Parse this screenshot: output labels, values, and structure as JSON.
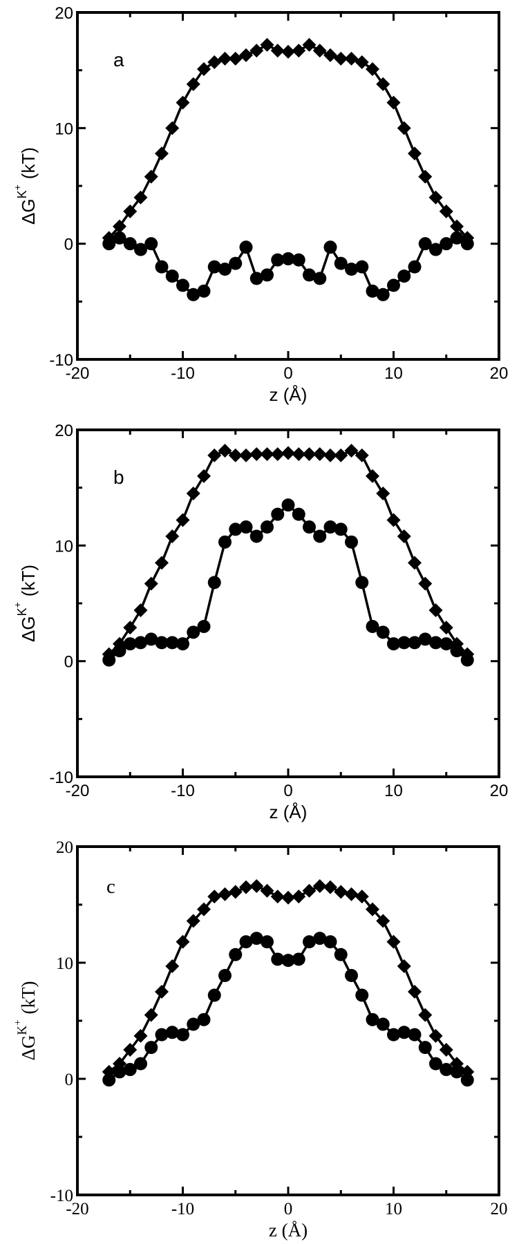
{
  "chart_data": [
    {
      "type": "line",
      "panel_label": "a",
      "xlabel": "z (Å)",
      "ylabel": "ΔG",
      "ylabel_sup": "K",
      "ylabel_supsup": "+",
      "ylabel_unit": "(kT)",
      "xlim": [
        -20,
        20
      ],
      "ylim": [
        -10,
        20
      ],
      "xticks": [
        "-20",
        "-10",
        "0",
        "10",
        "20"
      ],
      "yticks": [
        "-10",
        "0",
        "10",
        "20"
      ],
      "series": [
        {
          "marker": "diamond",
          "x": [
            -17,
            -16,
            -15,
            -14,
            -13,
            -12,
            -11,
            -10,
            -9,
            -8,
            -7,
            -6,
            -5,
            -4,
            -3,
            -2,
            -1,
            0,
            1,
            2,
            3,
            4,
            5,
            6,
            7,
            8,
            9,
            10,
            11,
            12,
            13,
            14,
            15,
            16,
            17
          ],
          "y": [
            0.5,
            1.5,
            2.8,
            4.0,
            5.8,
            7.8,
            10.0,
            12.2,
            13.8,
            15.1,
            15.7,
            16.0,
            16.0,
            16.3,
            16.7,
            17.2,
            16.7,
            16.6,
            16.7,
            17.2,
            16.7,
            16.3,
            16.0,
            16.0,
            15.7,
            15.1,
            13.8,
            12.2,
            10.0,
            7.8,
            5.8,
            4.0,
            2.8,
            1.5,
            0.5
          ]
        },
        {
          "marker": "circle",
          "x": [
            -17,
            -16,
            -15,
            -14,
            -13,
            -12,
            -11,
            -10,
            -9,
            -8,
            -7,
            -6,
            -5,
            -4,
            -3,
            -2,
            -1,
            0,
            1,
            2,
            3,
            4,
            5,
            6,
            7,
            8,
            9,
            10,
            11,
            12,
            13,
            14,
            15,
            16,
            17
          ],
          "y": [
            0.0,
            0.5,
            0.0,
            -0.5,
            0.0,
            -2.0,
            -2.8,
            -3.6,
            -4.4,
            -4.1,
            -2.0,
            -2.2,
            -1.7,
            -0.3,
            -3.0,
            -2.7,
            -1.4,
            -1.3,
            -1.4,
            -2.7,
            -3.0,
            -0.3,
            -1.7,
            -2.2,
            -2.0,
            -4.1,
            -4.4,
            -3.6,
            -2.8,
            -2.0,
            0.0,
            -0.5,
            0.0,
            0.5,
            0.0
          ]
        }
      ]
    },
    {
      "type": "line",
      "panel_label": "b",
      "xlabel": "z (Å)",
      "ylabel": "ΔG",
      "ylabel_sup": "K",
      "ylabel_supsup": "+",
      "ylabel_unit": "(kT)",
      "xlim": [
        -20,
        20
      ],
      "ylim": [
        -10,
        20
      ],
      "xticks": [
        "-20",
        "-10",
        "0",
        "10",
        "20"
      ],
      "yticks": [
        "-10",
        "0",
        "10",
        "20"
      ],
      "series": [
        {
          "marker": "diamond",
          "x": [
            -17,
            -16,
            -15,
            -14,
            -13,
            -12,
            -11,
            -10,
            -9,
            -8,
            -7,
            -6,
            -5,
            -4,
            -3,
            -2,
            -1,
            0,
            1,
            2,
            3,
            4,
            5,
            6,
            7,
            8,
            9,
            10,
            11,
            12,
            13,
            14,
            15,
            16,
            17
          ],
          "y": [
            0.6,
            1.5,
            2.9,
            4.4,
            6.7,
            8.5,
            10.8,
            12.2,
            14.5,
            16.0,
            17.8,
            18.2,
            17.8,
            17.8,
            17.9,
            17.9,
            17.9,
            18.0,
            17.9,
            17.9,
            17.9,
            17.8,
            17.8,
            18.2,
            17.8,
            16.0,
            14.5,
            12.2,
            10.8,
            8.5,
            6.7,
            4.4,
            2.9,
            1.5,
            0.6
          ]
        },
        {
          "marker": "circle",
          "x": [
            -17,
            -16,
            -15,
            -14,
            -13,
            -12,
            -11,
            -10,
            -9,
            -8,
            -7,
            -6,
            -5,
            -4,
            -3,
            -2,
            -1,
            0,
            1,
            2,
            3,
            4,
            5,
            6,
            7,
            8,
            9,
            10,
            11,
            12,
            13,
            14,
            15,
            16,
            17
          ],
          "y": [
            0.1,
            0.9,
            1.5,
            1.6,
            1.9,
            1.6,
            1.6,
            1.5,
            2.5,
            3.0,
            6.8,
            10.3,
            11.4,
            11.6,
            10.8,
            11.6,
            12.7,
            13.5,
            12.7,
            11.6,
            10.8,
            11.6,
            11.4,
            10.3,
            6.8,
            3.0,
            2.5,
            1.5,
            1.6,
            1.6,
            1.9,
            1.6,
            1.5,
            0.9,
            0.1
          ]
        }
      ]
    },
    {
      "type": "line",
      "panel_label": "c",
      "xlabel": "z (Å)",
      "ylabel": "ΔG",
      "ylabel_sup": "K",
      "ylabel_supsup": "+",
      "ylabel_unit": "(kT)",
      "xlim": [
        -20,
        20
      ],
      "ylim": [
        -10,
        20
      ],
      "xticks": [
        "-20",
        "-10",
        "0",
        "10",
        "20"
      ],
      "yticks": [
        "-10",
        "0",
        "10",
        "20"
      ],
      "series": [
        {
          "marker": "diamond",
          "x": [
            -17,
            -16,
            -15,
            -14,
            -13,
            -12,
            -11,
            -10,
            -9,
            -8,
            -7,
            -6,
            -5,
            -4,
            -3,
            -2,
            -1,
            0,
            1,
            2,
            3,
            4,
            5,
            6,
            7,
            8,
            9,
            10,
            11,
            12,
            13,
            14,
            15,
            16,
            17
          ],
          "y": [
            0.6,
            1.3,
            2.5,
            3.7,
            5.5,
            7.5,
            9.7,
            11.8,
            13.6,
            14.6,
            15.7,
            15.9,
            16.1,
            16.5,
            16.6,
            16.2,
            15.7,
            15.6,
            15.7,
            16.2,
            16.6,
            16.5,
            16.1,
            15.9,
            15.7,
            14.6,
            13.6,
            11.8,
            9.7,
            7.5,
            5.5,
            3.7,
            2.5,
            1.3,
            0.6
          ]
        },
        {
          "marker": "circle",
          "x": [
            -17,
            -16,
            -15,
            -14,
            -13,
            -12,
            -11,
            -10,
            -9,
            -8,
            -7,
            -6,
            -5,
            -4,
            -3,
            -2,
            -1,
            0,
            1,
            2,
            3,
            4,
            5,
            6,
            7,
            8,
            9,
            10,
            11,
            12,
            13,
            14,
            15,
            16,
            17
          ],
          "y": [
            -0.1,
            0.6,
            0.8,
            1.3,
            2.7,
            3.8,
            4.0,
            3.8,
            4.7,
            5.1,
            7.2,
            8.9,
            10.7,
            11.8,
            12.1,
            11.8,
            10.3,
            10.2,
            10.3,
            11.8,
            12.1,
            11.8,
            10.7,
            8.9,
            7.2,
            5.1,
            4.7,
            3.8,
            4.0,
            3.8,
            2.7,
            1.3,
            0.8,
            0.6,
            -0.1
          ]
        }
      ]
    }
  ]
}
